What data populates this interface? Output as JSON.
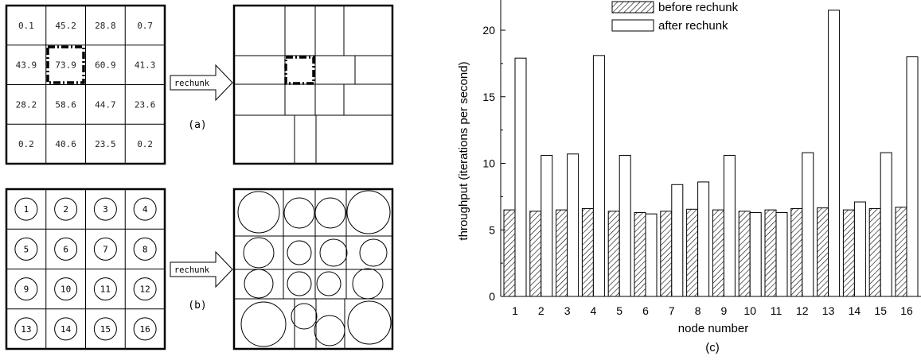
{
  "panel_a": {
    "caption": "(a)",
    "arrow_label": "rechunk",
    "grid_values": [
      [
        "0.1",
        "45.2",
        "28.8",
        "0.7"
      ],
      [
        "43.9",
        "73.9",
        "60.9",
        "41.3"
      ],
      [
        "28.2",
        "58.6",
        "44.7",
        "23.6"
      ],
      [
        "0.2",
        "40.6",
        "23.5",
        "0.2"
      ]
    ]
  },
  "panel_b": {
    "caption": "(b)",
    "arrow_label": "rechunk",
    "node_labels": [
      "1",
      "2",
      "3",
      "4",
      "5",
      "6",
      "7",
      "8",
      "9",
      "10",
      "11",
      "12",
      "13",
      "14",
      "15",
      "16"
    ]
  },
  "panel_c": {
    "caption": "(c)"
  },
  "chart_data": {
    "type": "bar",
    "xlabel": "node number",
    "ylabel": "throughput (iterations per second)",
    "categories": [
      "1",
      "2",
      "3",
      "4",
      "5",
      "6",
      "7",
      "8",
      "9",
      "10",
      "11",
      "12",
      "13",
      "14",
      "15",
      "16"
    ],
    "ylim": [
      0,
      22.5
    ],
    "yticks": [
      "0",
      "5",
      "10",
      "15",
      "20"
    ],
    "legend_position": "top-right",
    "series": [
      {
        "name": "before rechunk",
        "pattern": "hatched",
        "values": [
          6.5,
          6.4,
          6.5,
          6.6,
          6.4,
          6.3,
          6.4,
          6.55,
          6.5,
          6.4,
          6.5,
          6.6,
          6.65,
          6.5,
          6.6,
          6.7
        ]
      },
      {
        "name": "after rechunk",
        "pattern": "white",
        "values": [
          17.9,
          10.6,
          10.7,
          18.1,
          10.6,
          6.2,
          8.4,
          8.6,
          10.6,
          6.3,
          6.3,
          10.8,
          21.5,
          7.1,
          10.8,
          18.0
        ]
      }
    ],
    "colors": {
      "bar_stroke": "#000000",
      "hatch": "#000000",
      "fill": "#ffffff"
    }
  }
}
